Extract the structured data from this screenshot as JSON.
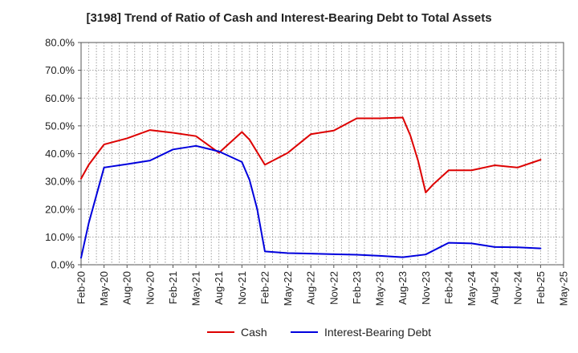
{
  "chart_data": {
    "type": "line",
    "title": "[3198]  Trend of Ratio of Cash and Interest-Bearing Debt to Total Assets",
    "xlabel": "",
    "ylabel": "",
    "ylim": [
      0,
      80
    ],
    "y_ticks": [
      0,
      10,
      20,
      30,
      40,
      50,
      60,
      70,
      80
    ],
    "y_tick_labels": [
      "0.0%",
      "10.0%",
      "20.0%",
      "30.0%",
      "40.0%",
      "50.0%",
      "60.0%",
      "70.0%",
      "80.0%"
    ],
    "x_tick_labels": [
      "Feb-20",
      "May-20",
      "Aug-20",
      "Nov-20",
      "Feb-21",
      "May-21",
      "Aug-21",
      "Nov-21",
      "Feb-22",
      "May-22",
      "Aug-22",
      "Nov-22",
      "Feb-23",
      "May-23",
      "Aug-23",
      "Nov-23",
      "Feb-24",
      "May-24",
      "Aug-24",
      "Nov-24",
      "Feb-25",
      "May-25"
    ],
    "x_range_months": [
      0,
      63
    ],
    "grid": true,
    "legend_position": "bottom",
    "series": [
      {
        "name": "Cash",
        "color": "#dd0000",
        "points": [
          [
            0,
            31.0
          ],
          [
            1,
            36.0
          ],
          [
            3,
            43.3
          ],
          [
            6,
            45.5
          ],
          [
            9,
            48.5
          ],
          [
            12,
            47.5
          ],
          [
            15,
            46.3
          ],
          [
            18,
            40.3
          ],
          [
            21,
            47.8
          ],
          [
            22,
            45.0
          ],
          [
            24,
            36.0
          ],
          [
            27,
            40.3
          ],
          [
            30,
            47.0
          ],
          [
            33,
            48.3
          ],
          [
            36,
            52.7
          ],
          [
            39,
            52.7
          ],
          [
            42,
            53.0
          ],
          [
            43,
            46.5
          ],
          [
            44,
            37.5
          ],
          [
            45,
            26.0
          ],
          [
            46,
            29.0
          ],
          [
            48,
            34.0
          ],
          [
            51,
            34.0
          ],
          [
            54,
            35.8
          ],
          [
            57,
            35.0
          ],
          [
            60,
            37.8
          ]
        ]
      },
      {
        "name": "Interest-Bearing Debt",
        "color": "#0000dd",
        "points": [
          [
            0,
            2.5
          ],
          [
            1,
            15.0
          ],
          [
            2,
            25.0
          ],
          [
            3,
            35.0
          ],
          [
            6,
            36.2
          ],
          [
            9,
            37.5
          ],
          [
            12,
            41.5
          ],
          [
            15,
            42.8
          ],
          [
            18,
            40.8
          ],
          [
            21,
            37.0
          ],
          [
            22,
            30.5
          ],
          [
            23,
            20.0
          ],
          [
            24,
            4.8
          ],
          [
            27,
            4.2
          ],
          [
            30,
            4.0
          ],
          [
            33,
            3.8
          ],
          [
            36,
            3.6
          ],
          [
            39,
            3.2
          ],
          [
            42,
            2.7
          ],
          [
            45,
            3.7
          ],
          [
            48,
            7.9
          ],
          [
            51,
            7.7
          ],
          [
            54,
            6.4
          ],
          [
            57,
            6.3
          ],
          [
            60,
            5.9
          ]
        ]
      }
    ]
  }
}
